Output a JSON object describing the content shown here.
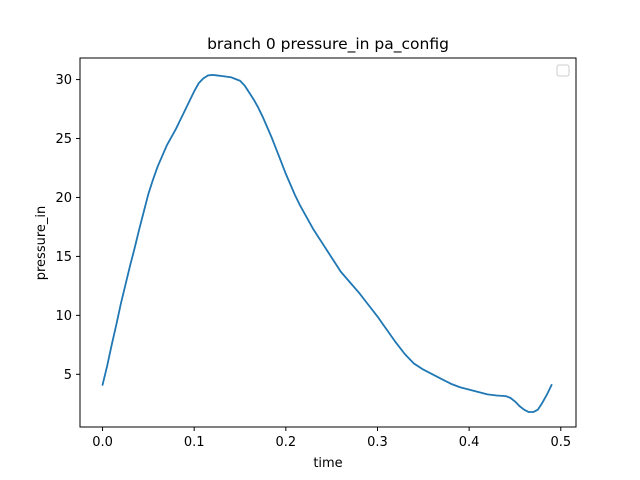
{
  "chart_data": {
    "type": "line",
    "title": "branch 0 pressure_in pa_config",
    "xlabel": "time",
    "ylabel": "pressure_in",
    "xlim": [
      -0.0246,
      0.5166
    ],
    "ylim": [
      0.53,
      31.83
    ],
    "x_ticks": [
      {
        "value": 0.0,
        "label": "0.0"
      },
      {
        "value": 0.1,
        "label": "0.1"
      },
      {
        "value": 0.2,
        "label": "0.2"
      },
      {
        "value": 0.3,
        "label": "0.3"
      },
      {
        "value": 0.4,
        "label": "0.4"
      },
      {
        "value": 0.5,
        "label": "0.5"
      }
    ],
    "y_ticks": [
      {
        "value": 5,
        "label": "5"
      },
      {
        "value": 10,
        "label": "10"
      },
      {
        "value": 15,
        "label": "15"
      },
      {
        "value": 20,
        "label": "20"
      },
      {
        "value": 25,
        "label": "25"
      },
      {
        "value": 30,
        "label": "30"
      }
    ],
    "grid": false,
    "legend": {
      "placement": "top-right",
      "entries": []
    },
    "series": [
      {
        "color": "#1f77b4",
        "x": [
          0.0,
          0.005,
          0.01,
          0.015,
          0.02,
          0.025,
          0.03,
          0.035,
          0.04,
          0.045,
          0.05,
          0.055,
          0.06,
          0.065,
          0.07,
          0.075,
          0.08,
          0.085,
          0.09,
          0.095,
          0.1,
          0.105,
          0.11,
          0.115,
          0.12,
          0.125,
          0.13,
          0.135,
          0.14,
          0.145,
          0.15,
          0.155,
          0.16,
          0.165,
          0.17,
          0.175,
          0.18,
          0.185,
          0.19,
          0.195,
          0.2,
          0.205,
          0.21,
          0.215,
          0.22,
          0.225,
          0.23,
          0.235,
          0.24,
          0.245,
          0.25,
          0.26,
          0.27,
          0.28,
          0.29,
          0.3,
          0.31,
          0.32,
          0.33,
          0.34,
          0.35,
          0.36,
          0.37,
          0.38,
          0.39,
          0.4,
          0.41,
          0.42,
          0.43,
          0.44,
          0.445,
          0.45,
          0.455,
          0.46,
          0.465,
          0.47,
          0.475,
          0.48,
          0.485,
          0.49
        ],
        "y": [
          4.1,
          5.7,
          7.5,
          9.2,
          11.0,
          12.6,
          14.2,
          15.7,
          17.3,
          18.8,
          20.3,
          21.5,
          22.6,
          23.5,
          24.4,
          25.1,
          25.8,
          26.6,
          27.4,
          28.2,
          29.0,
          29.7,
          30.1,
          30.35,
          30.4,
          30.35,
          30.3,
          30.25,
          30.2,
          30.05,
          29.9,
          29.5,
          28.9,
          28.3,
          27.6,
          26.8,
          25.9,
          25.0,
          24.0,
          23.0,
          22.0,
          21.1,
          20.2,
          19.4,
          18.7,
          18.0,
          17.3,
          16.7,
          16.1,
          15.5,
          14.9,
          13.7,
          12.8,
          11.9,
          10.9,
          9.9,
          8.8,
          7.7,
          6.7,
          5.9,
          5.4,
          5.0,
          4.6,
          4.2,
          3.9,
          3.7,
          3.5,
          3.3,
          3.2,
          3.15,
          3.0,
          2.7,
          2.3,
          2.0,
          1.8,
          1.8,
          2.0,
          2.6,
          3.3,
          4.1
        ]
      }
    ]
  }
}
